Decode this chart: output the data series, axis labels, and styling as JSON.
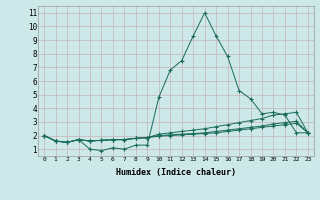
{
  "xlabel": "Humidex (Indice chaleur)",
  "bg_color": "#cce8e8",
  "grid_color": "#b8b8b8",
  "line_color": "#1a6b5a",
  "xlim": [
    -0.5,
    23.5
  ],
  "ylim": [
    0.5,
    11.5
  ],
  "xticks": [
    0,
    1,
    2,
    3,
    4,
    5,
    6,
    7,
    8,
    9,
    10,
    11,
    12,
    13,
    14,
    15,
    16,
    17,
    18,
    19,
    20,
    21,
    22,
    23
  ],
  "yticks": [
    1,
    2,
    3,
    4,
    5,
    6,
    7,
    8,
    9,
    10,
    11
  ],
  "lines": [
    {
      "x": [
        0,
        1,
        2,
        3,
        4,
        5,
        6,
        7,
        8,
        9,
        10,
        11,
        12,
        13,
        14,
        15,
        16,
        17,
        18,
        19,
        20,
        21,
        22,
        23
      ],
      "y": [
        2.0,
        1.6,
        1.5,
        1.7,
        1.0,
        0.9,
        1.1,
        1.0,
        1.3,
        1.3,
        4.8,
        6.8,
        7.5,
        9.3,
        11.0,
        9.3,
        7.8,
        5.3,
        4.7,
        3.6,
        3.7,
        3.5,
        2.2,
        2.2
      ]
    },
    {
      "x": [
        0,
        1,
        2,
        3,
        4,
        5,
        6,
        7,
        8,
        9,
        10,
        11,
        12,
        13,
        14,
        15,
        16,
        17,
        18,
        19,
        20,
        21,
        22,
        23
      ],
      "y": [
        2.0,
        1.6,
        1.5,
        1.7,
        1.6,
        1.65,
        1.7,
        1.7,
        1.8,
        1.85,
        2.1,
        2.2,
        2.3,
        2.4,
        2.5,
        2.65,
        2.8,
        2.95,
        3.1,
        3.25,
        3.5,
        3.6,
        3.7,
        2.2
      ]
    },
    {
      "x": [
        0,
        1,
        2,
        3,
        4,
        5,
        6,
        7,
        8,
        9,
        10,
        11,
        12,
        13,
        14,
        15,
        16,
        17,
        18,
        19,
        20,
        21,
        22,
        23
      ],
      "y": [
        2.0,
        1.6,
        1.5,
        1.7,
        1.6,
        1.65,
        1.7,
        1.7,
        1.8,
        1.85,
        2.0,
        2.05,
        2.1,
        2.15,
        2.2,
        2.3,
        2.4,
        2.5,
        2.6,
        2.7,
        2.85,
        2.95,
        3.05,
        2.2
      ]
    },
    {
      "x": [
        0,
        1,
        2,
        3,
        4,
        5,
        6,
        7,
        8,
        9,
        10,
        11,
        12,
        13,
        14,
        15,
        16,
        17,
        18,
        19,
        20,
        21,
        22,
        23
      ],
      "y": [
        2.0,
        1.6,
        1.5,
        1.7,
        1.6,
        1.65,
        1.7,
        1.7,
        1.8,
        1.85,
        1.95,
        2.0,
        2.05,
        2.1,
        2.15,
        2.2,
        2.3,
        2.4,
        2.5,
        2.6,
        2.7,
        2.8,
        2.9,
        2.2
      ]
    }
  ]
}
